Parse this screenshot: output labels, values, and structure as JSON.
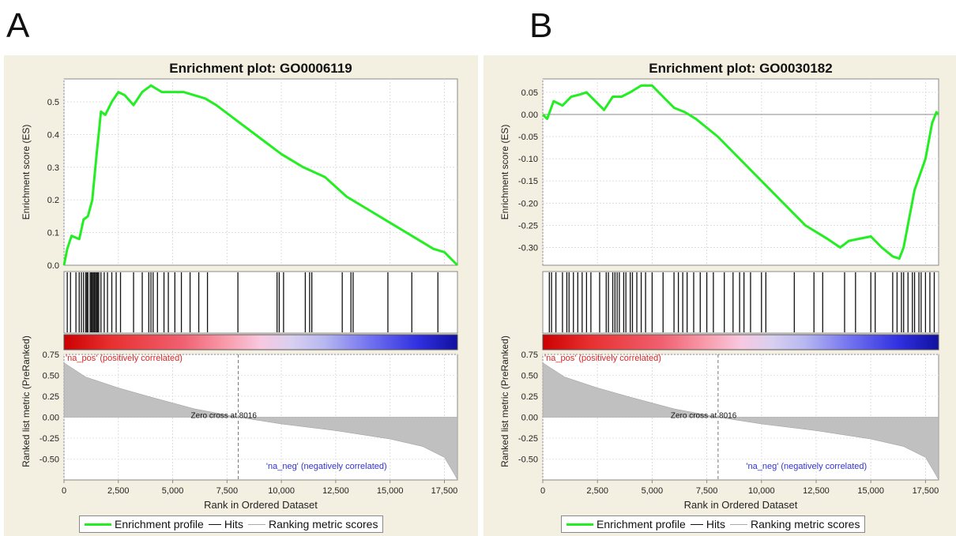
{
  "panels": [
    "A",
    "B"
  ],
  "legend": {
    "enrichment": "Enrichment profile",
    "hits": "Hits",
    "ranking": "Ranking metric scores"
  },
  "colors": {
    "es_line": "#22ee22",
    "hits": "#111111",
    "metric_fill": "#c0c0c0",
    "pos_label": "#dd2222",
    "neg_label": "#3333cc",
    "background": "#f4f0e1"
  },
  "chart_data": [
    {
      "type": "line",
      "panel": "A",
      "title": "Enrichment plot: GO0006119",
      "xlabel": "Rank in Ordered Dataset",
      "ylabel_top": "Enrichment score (ES)",
      "ylabel_bottom": "Ranked list metric (PreRanked)",
      "xlim": [
        0,
        18100
      ],
      "ylim_es": [
        0,
        0.57
      ],
      "ylim_metric": [
        -0.75,
        0.75
      ],
      "x_ticks": [
        "0",
        "2,500",
        "5,000",
        "7,500",
        "10,000",
        "12,500",
        "15,000",
        "17,500"
      ],
      "y_ticks_es": [
        "0.0",
        "0.1",
        "0.2",
        "0.3",
        "0.4",
        "0.5"
      ],
      "y_ticks_metric": [
        "0.75",
        "0.50",
        "0.25",
        "0.00",
        "-0.25",
        "-0.50"
      ],
      "pos_label": "'na_pos' (positively correlated)",
      "neg_label": "'na_neg' (negatively correlated)",
      "zero_cross": "Zero cross at 8016",
      "zero_cross_rank": 8016,
      "es_points": [
        [
          0,
          0
        ],
        [
          150,
          0.05
        ],
        [
          350,
          0.09
        ],
        [
          700,
          0.08
        ],
        [
          900,
          0.14
        ],
        [
          1100,
          0.15
        ],
        [
          1300,
          0.2
        ],
        [
          1500,
          0.34
        ],
        [
          1700,
          0.47
        ],
        [
          1900,
          0.46
        ],
        [
          2200,
          0.5
        ],
        [
          2500,
          0.53
        ],
        [
          2800,
          0.52
        ],
        [
          3200,
          0.49
        ],
        [
          3600,
          0.53
        ],
        [
          4000,
          0.55
        ],
        [
          4500,
          0.53
        ],
        [
          5000,
          0.53
        ],
        [
          5500,
          0.53
        ],
        [
          6000,
          0.52
        ],
        [
          6500,
          0.51
        ],
        [
          7000,
          0.49
        ],
        [
          8000,
          0.44
        ],
        [
          9000,
          0.39
        ],
        [
          10000,
          0.34
        ],
        [
          11000,
          0.3
        ],
        [
          12000,
          0.27
        ],
        [
          12500,
          0.24
        ],
        [
          13000,
          0.21
        ],
        [
          14000,
          0.17
        ],
        [
          15000,
          0.13
        ],
        [
          16000,
          0.09
        ],
        [
          17000,
          0.05
        ],
        [
          17500,
          0.04
        ],
        [
          18100,
          0
        ]
      ],
      "hits": [
        150,
        300,
        550,
        700,
        800,
        900,
        1000,
        1050,
        1100,
        1200,
        1250,
        1300,
        1350,
        1400,
        1450,
        1500,
        1550,
        1600,
        1700,
        1850,
        2000,
        2200,
        2400,
        2600,
        3200,
        3600,
        3900,
        4000,
        4100,
        4300,
        4600,
        4800,
        5100,
        5400,
        5800,
        6200,
        6600,
        8000,
        9800,
        9900,
        10100,
        11100,
        11300,
        11400,
        12800,
        13200,
        13300,
        14900,
        16000,
        17200
      ],
      "ranking_metric_points": [
        [
          0,
          0.65
        ],
        [
          1000,
          0.48
        ],
        [
          2500,
          0.35
        ],
        [
          4000,
          0.24
        ],
        [
          6000,
          0.1
        ],
        [
          8016,
          0
        ],
        [
          10000,
          -0.08
        ],
        [
          12500,
          -0.16
        ],
        [
          15000,
          -0.26
        ],
        [
          16500,
          -0.35
        ],
        [
          17500,
          -0.48
        ],
        [
          18000,
          -0.7
        ],
        [
          18100,
          -0.75
        ]
      ]
    },
    {
      "type": "line",
      "panel": "B",
      "title": "Enrichment plot: GO0030182",
      "xlabel": "Rank in Ordered Dataset",
      "ylabel_top": "Enrichment score (ES)",
      "ylabel_bottom": "Ranked list metric (PreRanked)",
      "xlim": [
        0,
        18100
      ],
      "ylim_es": [
        -0.34,
        0.08
      ],
      "ylim_metric": [
        -0.75,
        0.75
      ],
      "x_ticks": [
        "0",
        "2,500",
        "5,000",
        "7,500",
        "10,000",
        "12,500",
        "15,000",
        "17,500"
      ],
      "y_ticks_es": [
        "0.05",
        "0.00",
        "-0.05",
        "-0.10",
        "-0.15",
        "-0.20",
        "-0.25",
        "-0.30"
      ],
      "y_ticks_metric": [
        "0.75",
        "0.50",
        "0.25",
        "0.00",
        "-0.25",
        "-0.50"
      ],
      "pos_label": "'na_pos' (positively correlated)",
      "neg_label": "'na_neg' (negatively correlated)",
      "zero_cross": "Zero cross at 8016",
      "zero_cross_rank": 8016,
      "es_points": [
        [
          0,
          0
        ],
        [
          200,
          -0.01
        ],
        [
          500,
          0.03
        ],
        [
          900,
          0.02
        ],
        [
          1300,
          0.04
        ],
        [
          1700,
          0.045
        ],
        [
          2000,
          0.05
        ],
        [
          2400,
          0.03
        ],
        [
          2800,
          0.01
        ],
        [
          3200,
          0.04
        ],
        [
          3600,
          0.04
        ],
        [
          4000,
          0.05
        ],
        [
          4500,
          0.065
        ],
        [
          5000,
          0.065
        ],
        [
          5500,
          0.04
        ],
        [
          6000,
          0.015
        ],
        [
          6500,
          0.005
        ],
        [
          7000,
          -0.01
        ],
        [
          8000,
          -0.05
        ],
        [
          9000,
          -0.1
        ],
        [
          10000,
          -0.15
        ],
        [
          11000,
          -0.2
        ],
        [
          12000,
          -0.25
        ],
        [
          13000,
          -0.28
        ],
        [
          13600,
          -0.3
        ],
        [
          14000,
          -0.285
        ],
        [
          15000,
          -0.275
        ],
        [
          15500,
          -0.3
        ],
        [
          16000,
          -0.32
        ],
        [
          16300,
          -0.325
        ],
        [
          16500,
          -0.3
        ],
        [
          17000,
          -0.17
        ],
        [
          17500,
          -0.1
        ],
        [
          17800,
          -0.02
        ],
        [
          18000,
          0.005
        ],
        [
          18100,
          0
        ]
      ],
      "hits": [
        300,
        400,
        600,
        900,
        1100,
        1200,
        1400,
        1600,
        1800,
        2000,
        2200,
        2600,
        2900,
        3000,
        3200,
        3300,
        3400,
        3500,
        3700,
        3800,
        4000,
        4100,
        4300,
        4500,
        4700,
        5000,
        5500,
        6000,
        6200,
        6400,
        6600,
        6900,
        7200,
        7500,
        7800,
        8300,
        8700,
        9000,
        9200,
        9500,
        10000,
        10200,
        11500,
        12400,
        12800,
        13800,
        14300,
        15000,
        15200,
        16000,
        16200,
        16400,
        16500,
        16700,
        16900,
        17000,
        17200,
        17300,
        17500,
        17700,
        17900
      ],
      "ranking_metric_points": [
        [
          0,
          0.65
        ],
        [
          1000,
          0.48
        ],
        [
          2500,
          0.35
        ],
        [
          4000,
          0.24
        ],
        [
          6000,
          0.1
        ],
        [
          8016,
          0
        ],
        [
          10000,
          -0.08
        ],
        [
          12500,
          -0.16
        ],
        [
          15000,
          -0.26
        ],
        [
          16500,
          -0.35
        ],
        [
          17500,
          -0.48
        ],
        [
          18000,
          -0.7
        ],
        [
          18100,
          -0.75
        ]
      ]
    }
  ]
}
